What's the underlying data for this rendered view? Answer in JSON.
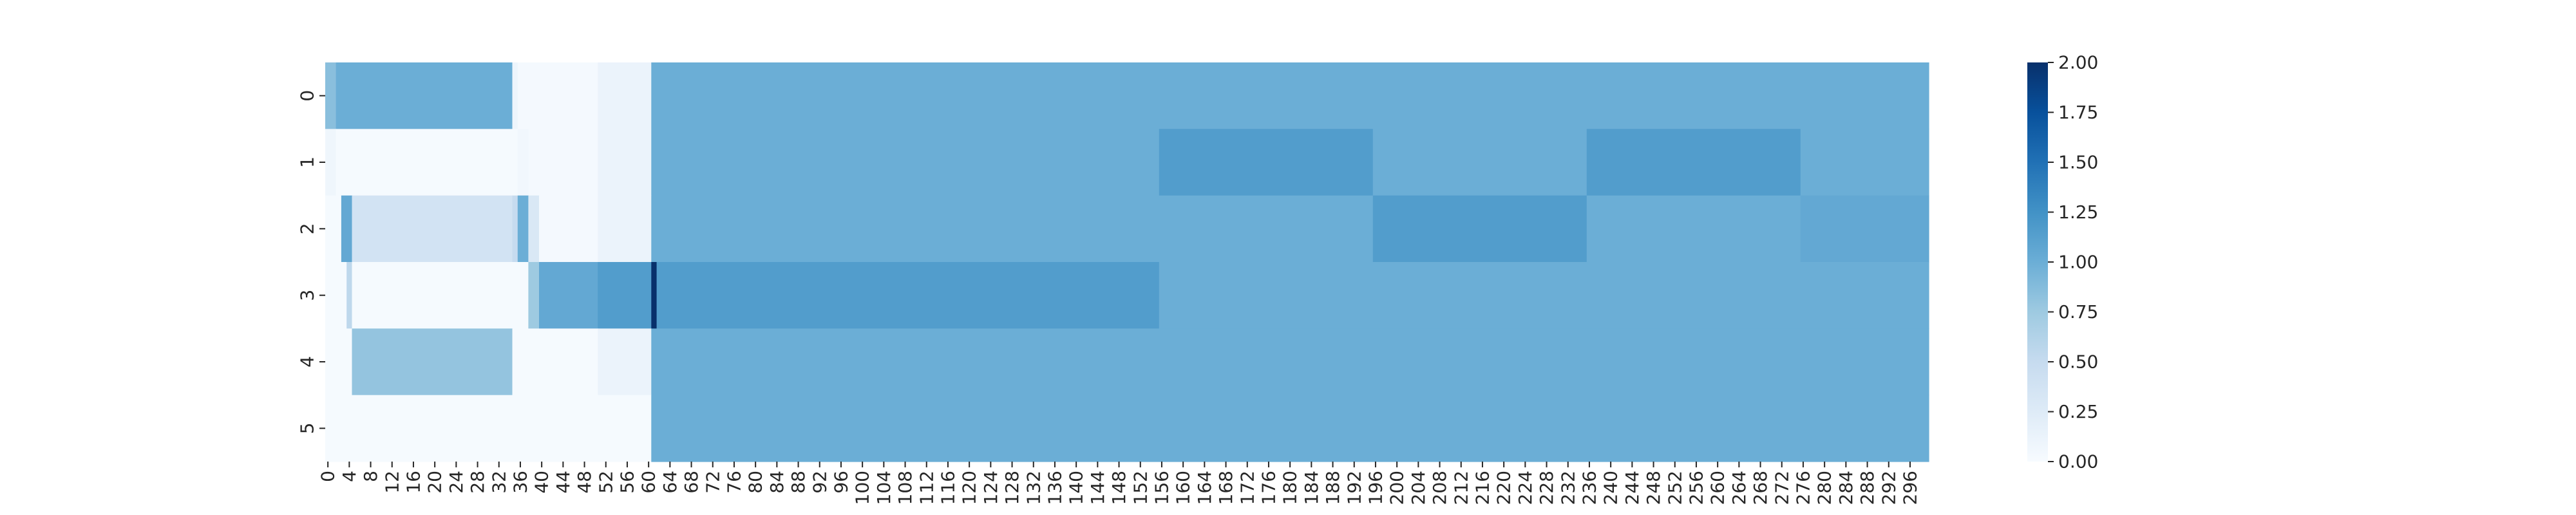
{
  "chart_data": {
    "type": "heatmap",
    "title": "",
    "xlabel": "",
    "ylabel": "",
    "colormap": "Blues",
    "colormap_stops": [
      "#f7fbff",
      "#deebf7",
      "#c6dbef",
      "#9ecae1",
      "#6baed6",
      "#4292c6",
      "#2171b5",
      "#08519c",
      "#08306b"
    ],
    "vmin": 0,
    "vmax": 2,
    "n_cols": 300,
    "x_ticks": [
      0,
      4,
      8,
      12,
      16,
      20,
      24,
      28,
      32,
      36,
      40,
      44,
      48,
      52,
      56,
      60,
      64,
      68,
      72,
      76,
      80,
      84,
      88,
      92,
      96,
      100,
      104,
      108,
      112,
      116,
      120,
      124,
      128,
      132,
      136,
      140,
      144,
      148,
      152,
      156,
      160,
      164,
      168,
      172,
      176,
      180,
      184,
      188,
      192,
      196,
      200,
      204,
      208,
      212,
      216,
      220,
      224,
      228,
      232,
      236,
      240,
      244,
      248,
      252,
      256,
      260,
      264,
      268,
      272,
      276,
      280,
      284,
      288,
      292,
      296
    ],
    "y_categories": [
      "0",
      "1",
      "2",
      "3",
      "4",
      "5"
    ],
    "colorbar_ticks": [
      "0.00",
      "0.25",
      "0.50",
      "0.75",
      "1.00",
      "1.25",
      "1.50",
      "1.75",
      "2.00"
    ],
    "rows": [
      [
        [
          0,
          2,
          0.85
        ],
        [
          2,
          35,
          1.0
        ],
        [
          35,
          36,
          0.1
        ],
        [
          36,
          51,
          0.03
        ],
        [
          51,
          61,
          0.12
        ],
        [
          61,
          300,
          1.0
        ]
      ],
      [
        [
          0,
          2,
          0.08
        ],
        [
          2,
          36,
          0.02
        ],
        [
          36,
          38,
          0.06
        ],
        [
          38,
          51,
          0.03
        ],
        [
          51,
          61,
          0.12
        ],
        [
          61,
          156,
          1.0
        ],
        [
          156,
          196,
          1.15
        ],
        [
          196,
          236,
          1.0
        ],
        [
          236,
          276,
          1.15
        ],
        [
          276,
          300,
          1.0
        ]
      ],
      [
        [
          0,
          3,
          0.02
        ],
        [
          3,
          5,
          1.05
        ],
        [
          5,
          35,
          0.38
        ],
        [
          35,
          36,
          0.5
        ],
        [
          36,
          38,
          1.0
        ],
        [
          38,
          40,
          0.3
        ],
        [
          40,
          51,
          0.03
        ],
        [
          51,
          61,
          0.12
        ],
        [
          61,
          196,
          1.0
        ],
        [
          196,
          236,
          1.15
        ],
        [
          236,
          276,
          1.0
        ],
        [
          276,
          300,
          1.05
        ]
      ],
      [
        [
          0,
          4,
          0.02
        ],
        [
          4,
          5,
          0.55
        ],
        [
          5,
          38,
          0.02
        ],
        [
          38,
          40,
          0.75
        ],
        [
          40,
          51,
          1.05
        ],
        [
          51,
          61,
          1.15
        ],
        [
          61,
          62,
          2.0
        ],
        [
          62,
          156,
          1.15
        ],
        [
          156,
          300,
          1.0
        ]
      ],
      [
        [
          0,
          5,
          0.02
        ],
        [
          5,
          35,
          0.8
        ],
        [
          35,
          51,
          0.02
        ],
        [
          51,
          61,
          0.12
        ],
        [
          61,
          300,
          1.0
        ]
      ],
      [
        [
          0,
          61,
          0.02
        ],
        [
          61,
          300,
          1.0
        ]
      ]
    ]
  }
}
